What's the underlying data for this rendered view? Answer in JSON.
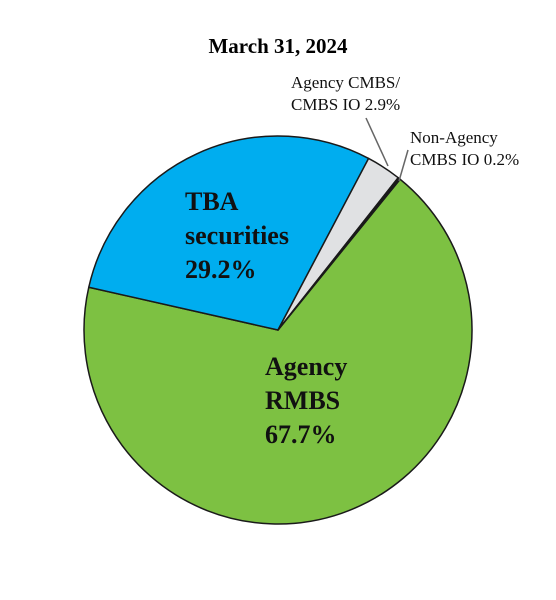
{
  "chart_data": {
    "type": "pie",
    "title": "March 31, 2024",
    "categories": [
      "Agency RMBS",
      "TBA securities",
      "Agency CMBS/ CMBS IO",
      "Non-Agency CMBS IO"
    ],
    "values": [
      67.7,
      29.2,
      2.9,
      0.2
    ],
    "value_labels": [
      "67.7%",
      "29.2%",
      "2.9%",
      "0.2%"
    ],
    "colors": [
      "#7dc142",
      "#00adef",
      "#e0e1e3",
      "#1a1a1a"
    ]
  }
}
